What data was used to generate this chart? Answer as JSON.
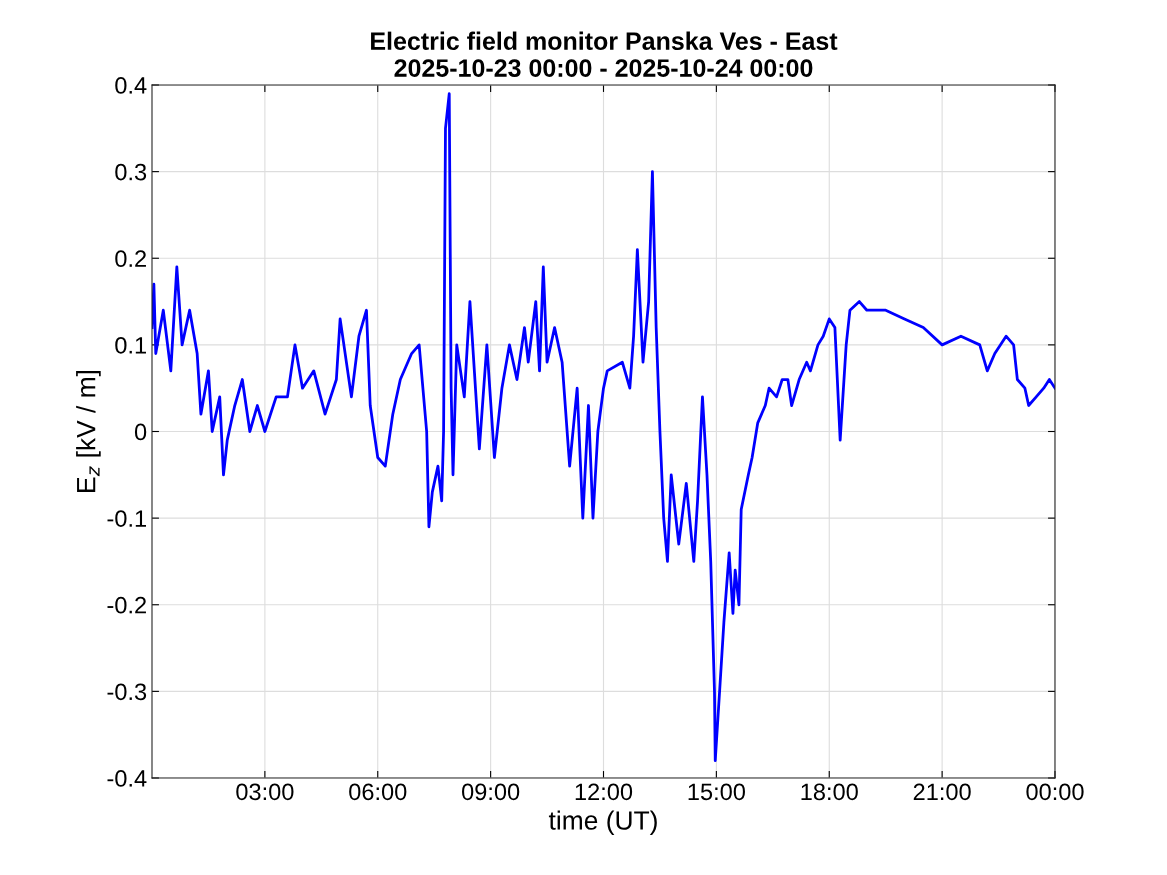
{
  "chart_data": {
    "type": "line",
    "title": "Electric field monitor Panska Ves - East\n2025-10-23 00:00 - 2025-10-24 00:00",
    "xlabel": "time (UT)",
    "ylabel": "E$_{z}$ [kV / m]",
    "grid": true,
    "line_style": "solid",
    "marker": "none",
    "xlim": [
      0,
      24
    ],
    "xticks": [
      {
        "value": 3,
        "label": "03:00"
      },
      {
        "value": 6,
        "label": "06:00"
      },
      {
        "value": 9,
        "label": "09:00"
      },
      {
        "value": 12,
        "label": "12:00"
      },
      {
        "value": 15,
        "label": "15:00"
      },
      {
        "value": 18,
        "label": "18:00"
      },
      {
        "value": 21,
        "label": "21:00"
      },
      {
        "value": 24,
        "label": "00:00"
      }
    ],
    "ylim": [
      -0.4,
      0.4
    ],
    "yticks": [
      -0.4,
      -0.3,
      -0.2,
      -0.1,
      0,
      0.1,
      0.2,
      0.3,
      0.4
    ],
    "series": [
      {
        "color": "#0000ff",
        "x": [
          0,
          0.05,
          0.1,
          0.3,
          0.5,
          0.66,
          0.8,
          1.0,
          1.2,
          1.3,
          1.5,
          1.6,
          1.8,
          1.9,
          2.0,
          2.2,
          2.4,
          2.6,
          2.8,
          3.0,
          3.3,
          3.6,
          3.8,
          4.0,
          4.3,
          4.6,
          4.9,
          5.0,
          5.3,
          5.5,
          5.7,
          5.8,
          6.0,
          6.2,
          6.4,
          6.6,
          6.9,
          7.1,
          7.3,
          7.36,
          7.45,
          7.6,
          7.7,
          7.75,
          7.8,
          7.9,
          7.95,
          8.0,
          8.1,
          8.3,
          8.45,
          8.7,
          8.9,
          9.1,
          9.3,
          9.5,
          9.7,
          9.9,
          10.0,
          10.2,
          10.3,
          10.4,
          10.5,
          10.7,
          10.9,
          11.1,
          11.3,
          11.45,
          11.6,
          11.72,
          11.85,
          12.0,
          12.1,
          12.5,
          12.7,
          12.8,
          12.9,
          13.05,
          13.2,
          13.3,
          13.4,
          13.5,
          13.6,
          13.7,
          13.8,
          14.0,
          14.2,
          14.4,
          14.5,
          14.63,
          14.75,
          14.85,
          14.95,
          14.97,
          15.1,
          15.2,
          15.34,
          15.44,
          15.5,
          15.6,
          15.66,
          15.85,
          15.95,
          16.1,
          16.3,
          16.4,
          16.6,
          16.75,
          16.9,
          17.0,
          17.2,
          17.4,
          17.5,
          17.7,
          17.84,
          18.0,
          18.15,
          18.29,
          18.45,
          18.55,
          18.8,
          19.0,
          19.5,
          20.0,
          20.5,
          21.0,
          21.5,
          22.0,
          22.2,
          22.4,
          22.7,
          22.9,
          23.0,
          23.2,
          23.3,
          23.5,
          23.7,
          23.85,
          24.0
        ],
        "values": [
          0.12,
          0.17,
          0.09,
          0.14,
          0.07,
          0.19,
          0.1,
          0.14,
          0.09,
          0.02,
          0.07,
          0.0,
          0.04,
          -0.05,
          -0.01,
          0.03,
          0.06,
          0.0,
          0.03,
          0.0,
          0.04,
          0.04,
          0.1,
          0.05,
          0.07,
          0.02,
          0.06,
          0.13,
          0.04,
          0.11,
          0.14,
          0.03,
          -0.03,
          -0.04,
          0.02,
          0.06,
          0.09,
          0.1,
          0.0,
          -0.11,
          -0.07,
          -0.04,
          -0.08,
          0.0,
          0.35,
          0.39,
          0.05,
          -0.05,
          0.1,
          0.04,
          0.15,
          -0.02,
          0.1,
          -0.03,
          0.05,
          0.1,
          0.06,
          0.12,
          0.08,
          0.15,
          0.07,
          0.19,
          0.08,
          0.12,
          0.08,
          -0.04,
          0.05,
          -0.1,
          0.03,
          -0.1,
          0.0,
          0.05,
          0.07,
          0.08,
          0.05,
          0.11,
          0.21,
          0.08,
          0.15,
          0.3,
          0.12,
          0.0,
          -0.1,
          -0.15,
          -0.05,
          -0.13,
          -0.06,
          -0.15,
          -0.08,
          0.04,
          -0.05,
          -0.15,
          -0.3,
          -0.38,
          -0.29,
          -0.22,
          -0.14,
          -0.21,
          -0.16,
          -0.2,
          -0.09,
          -0.05,
          -0.03,
          0.01,
          0.03,
          0.05,
          0.04,
          0.06,
          0.06,
          0.03,
          0.06,
          0.08,
          0.07,
          0.1,
          0.11,
          0.13,
          0.12,
          -0.01,
          0.1,
          0.14,
          0.15,
          0.14,
          0.14,
          0.13,
          0.12,
          0.1,
          0.11,
          0.1,
          0.07,
          0.09,
          0.11,
          0.1,
          0.06,
          0.05,
          0.03,
          0.04,
          0.05,
          0.06,
          0.05
        ]
      }
    ]
  }
}
